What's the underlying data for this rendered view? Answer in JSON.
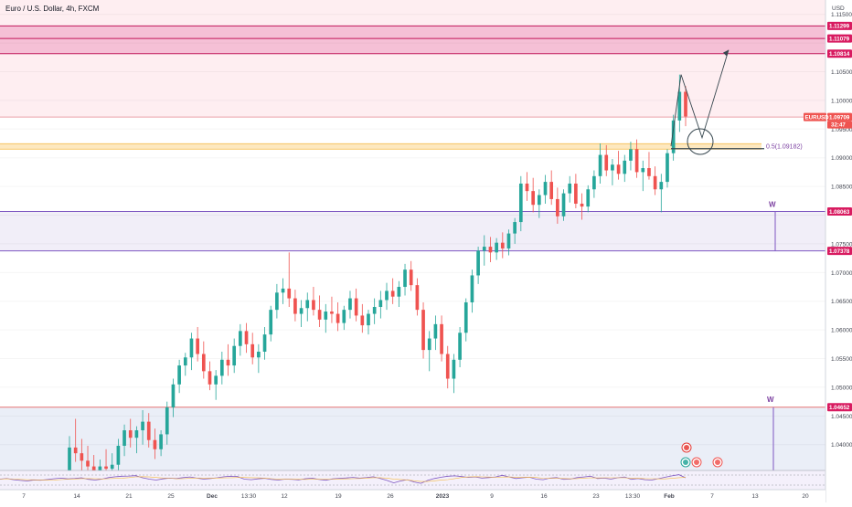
{
  "header": {
    "title": "Euro / U.S. Dollar, 4h, FXCM",
    "currency": "USD"
  },
  "chart_data": {
    "type": "candlestick",
    "symbol": "EURUSD",
    "timeframe": "4h",
    "ylim": [
      1.0355,
      1.1175
    ],
    "y_ticks": [
      "1.11500",
      "1.11000",
      "1.10500",
      "1.10000",
      "1.09500",
      "1.09000",
      "1.08500",
      "1.08000",
      "1.07500",
      "1.07000",
      "1.06500",
      "1.06000",
      "1.05500",
      "1.05000",
      "1.04500",
      "1.04000"
    ],
    "x_tick_labels": [
      "7",
      "14",
      "21",
      "25",
      "Dec",
      "13:30",
      "12",
      "19",
      "26",
      "2023",
      "9",
      "16",
      "23",
      "13:30",
      "Feb",
      "7",
      "13",
      "20"
    ],
    "current_price": {
      "symbol": "EURUSD",
      "value": "1.09709",
      "countdown": "32:47"
    },
    "zones": [
      {
        "name": "upper-resistance",
        "from": 1.10814,
        "to": 1.11299,
        "color": "#f6c7dc",
        "border": "#c2185b"
      },
      {
        "name": "supply-ceiling",
        "from": 1.09709,
        "to": 1.1175,
        "color": "#fde8ec"
      },
      {
        "name": "middle-range",
        "from": 1.07378,
        "to": 1.08063,
        "color": "#ece8f5",
        "border": "#7e57c2"
      },
      {
        "name": "lower-range",
        "from": 1.0355,
        "to": 1.04652,
        "color": "#e3e8f4",
        "border": "#e57373"
      }
    ],
    "levels": [
      {
        "value": 1.11299,
        "label": "1.11299",
        "color": "#d81b60"
      },
      {
        "value": 1.11079,
        "label": "1.11079",
        "color": "#d81b60"
      },
      {
        "value": 1.10814,
        "label": "1.10814",
        "color": "#d81b60"
      },
      {
        "value": 1.09709,
        "label": "1.09709",
        "color": "#ef5350"
      },
      {
        "value": 1.08063,
        "label": "1.08063",
        "color": "#d81b60"
      },
      {
        "value": 1.07378,
        "label": "1.07378",
        "color": "#d81b60"
      },
      {
        "value": 1.04652,
        "label": "1.04652",
        "color": "#d81b60"
      }
    ],
    "fib": {
      "label": "0.5(1.09182)",
      "value": 1.09182
    },
    "annotations": [
      {
        "text": "W"
      },
      {
        "text": "W"
      }
    ],
    "ohlc": [
      [
        1.0335,
        1.0415,
        1.031,
        1.0395
      ],
      [
        1.0395,
        1.0445,
        1.037,
        1.0385
      ],
      [
        1.0385,
        1.041,
        1.0355,
        1.0372
      ],
      [
        1.0372,
        1.0398,
        1.0345,
        1.0362
      ],
      [
        1.0362,
        1.0382,
        1.033,
        1.0348
      ],
      [
        1.0348,
        1.0374,
        1.0315,
        1.0362
      ],
      [
        1.0362,
        1.0392,
        1.034,
        1.0358
      ],
      [
        1.0358,
        1.0385,
        1.033,
        1.0365
      ],
      [
        1.0365,
        1.041,
        1.035,
        1.0398
      ],
      [
        1.0398,
        1.0435,
        1.038,
        1.0425
      ],
      [
        1.0425,
        1.0445,
        1.0395,
        1.0412
      ],
      [
        1.0412,
        1.0432,
        1.0385,
        1.0425
      ],
      [
        1.0425,
        1.046,
        1.04,
        1.044
      ],
      [
        1.044,
        1.0455,
        1.0395,
        1.0408
      ],
      [
        1.0408,
        1.0428,
        1.0375,
        1.0392
      ],
      [
        1.0392,
        1.0425,
        1.038,
        1.0418
      ],
      [
        1.0418,
        1.0475,
        1.04,
        1.0465
      ],
      [
        1.0465,
        1.0515,
        1.0448,
        1.0505
      ],
      [
        1.0505,
        1.0548,
        1.049,
        1.0538
      ],
      [
        1.0538,
        1.056,
        1.052,
        1.0552
      ],
      [
        1.0552,
        1.0595,
        1.053,
        1.0585
      ],
      [
        1.0585,
        1.0605,
        1.0545,
        1.0558
      ],
      [
        1.0558,
        1.058,
        1.0515,
        1.0528
      ],
      [
        1.0528,
        1.0545,
        1.0495,
        1.0505
      ],
      [
        1.0505,
        1.053,
        1.0478,
        1.052
      ],
      [
        1.052,
        1.0562,
        1.0505,
        1.0548
      ],
      [
        1.0548,
        1.0575,
        1.052,
        1.0538
      ],
      [
        1.0538,
        1.0585,
        1.0525,
        1.0572
      ],
      [
        1.0572,
        1.061,
        1.0555,
        1.0598
      ],
      [
        1.0598,
        1.0612,
        1.056,
        1.0575
      ],
      [
        1.0575,
        1.0595,
        1.054,
        1.0552
      ],
      [
        1.0552,
        1.0575,
        1.0525,
        1.0562
      ],
      [
        1.0562,
        1.0605,
        1.0548,
        1.0592
      ],
      [
        1.0592,
        1.0642,
        1.058,
        1.0635
      ],
      [
        1.0635,
        1.068,
        1.062,
        1.0665
      ],
      [
        1.0665,
        1.069,
        1.0645,
        1.0672
      ],
      [
        1.0672,
        1.0735,
        1.064,
        1.0655
      ],
      [
        1.0655,
        1.067,
        1.0615,
        1.0628
      ],
      [
        1.0628,
        1.0652,
        1.0605,
        1.0638
      ],
      [
        1.0638,
        1.0665,
        1.0615,
        1.0652
      ],
      [
        1.0652,
        1.0675,
        1.0625,
        1.0635
      ],
      [
        1.0635,
        1.066,
        1.0605,
        1.0618
      ],
      [
        1.0618,
        1.0645,
        1.0595,
        1.0632
      ],
      [
        1.0632,
        1.0658,
        1.0612,
        1.0628
      ],
      [
        1.0628,
        1.0648,
        1.0598,
        1.0612
      ],
      [
        1.0612,
        1.0642,
        1.06,
        1.0635
      ],
      [
        1.0635,
        1.0668,
        1.062,
        1.0655
      ],
      [
        1.0655,
        1.0672,
        1.0615,
        1.0625
      ],
      [
        1.0625,
        1.0645,
        1.0595,
        1.0608
      ],
      [
        1.0608,
        1.0635,
        1.0592,
        1.0628
      ],
      [
        1.0628,
        1.0655,
        1.061,
        1.064
      ],
      [
        1.064,
        1.0668,
        1.062,
        1.0652
      ],
      [
        1.0652,
        1.0682,
        1.0635,
        1.0668
      ],
      [
        1.0668,
        1.069,
        1.0645,
        1.0658
      ],
      [
        1.0658,
        1.0685,
        1.064,
        1.0675
      ],
      [
        1.0675,
        1.0715,
        1.066,
        1.0705
      ],
      [
        1.0705,
        1.072,
        1.0668,
        1.0678
      ],
      [
        1.0678,
        1.069,
        1.0625,
        1.0635
      ],
      [
        1.0635,
        1.0648,
        1.055,
        1.0565
      ],
      [
        1.0565,
        1.0598,
        1.0528,
        1.0585
      ],
      [
        1.0585,
        1.0625,
        1.0565,
        1.061
      ],
      [
        1.061,
        1.0625,
        1.0545,
        1.0558
      ],
      [
        1.0558,
        1.0572,
        1.0498,
        1.0515
      ],
      [
        1.0515,
        1.0558,
        1.049,
        1.0548
      ],
      [
        1.0548,
        1.0605,
        1.0535,
        1.0595
      ],
      [
        1.0595,
        1.0655,
        1.058,
        1.0648
      ],
      [
        1.0648,
        1.0705,
        1.063,
        1.0695
      ],
      [
        1.0695,
        1.0745,
        1.068,
        1.0738
      ],
      [
        1.0738,
        1.0765,
        1.0712,
        1.0745
      ],
      [
        1.0745,
        1.0762,
        1.0718,
        1.0735
      ],
      [
        1.0735,
        1.076,
        1.0722,
        1.0752
      ],
      [
        1.0752,
        1.077,
        1.0725,
        1.0742
      ],
      [
        1.0742,
        1.0775,
        1.073,
        1.0768
      ],
      [
        1.0768,
        1.0795,
        1.075,
        1.0788
      ],
      [
        1.0788,
        1.0868,
        1.0772,
        1.0855
      ],
      [
        1.0855,
        1.0875,
        1.0825,
        1.0842
      ],
      [
        1.0842,
        1.0865,
        1.0805,
        1.0818
      ],
      [
        1.0818,
        1.0845,
        1.0795,
        1.0835
      ],
      [
        1.0835,
        1.087,
        1.082,
        1.0858
      ],
      [
        1.0858,
        1.0878,
        1.0818,
        1.0828
      ],
      [
        1.0828,
        1.0848,
        1.0785,
        1.0798
      ],
      [
        1.0798,
        1.0845,
        1.079,
        1.0838
      ],
      [
        1.0838,
        1.0868,
        1.0822,
        1.0855
      ],
      [
        1.0855,
        1.0872,
        1.0812,
        1.082
      ],
      [
        1.082,
        1.0838,
        1.0792,
        1.0815
      ],
      [
        1.0815,
        1.0852,
        1.0805,
        1.0845
      ],
      [
        1.0845,
        1.0878,
        1.083,
        1.0868
      ],
      [
        1.0868,
        1.0925,
        1.0855,
        1.0905
      ],
      [
        1.0905,
        1.0922,
        1.0868,
        1.0878
      ],
      [
        1.0878,
        1.0898,
        1.0852,
        1.0888
      ],
      [
        1.0888,
        1.0912,
        1.0862,
        1.0872
      ],
      [
        1.0872,
        1.0905,
        1.0858,
        1.0895
      ],
      [
        1.0895,
        1.0928,
        1.0878,
        1.0915
      ],
      [
        1.0915,
        1.0932,
        1.0865,
        1.0875
      ],
      [
        1.0875,
        1.0895,
        1.0842,
        1.0882
      ],
      [
        1.0882,
        1.091,
        1.0862,
        1.0868
      ],
      [
        1.0868,
        1.0885,
        1.0835,
        1.0845
      ],
      [
        1.0845,
        1.0872,
        1.0805,
        1.0858
      ],
      [
        1.0858,
        1.0915,
        1.0848,
        1.0908
      ],
      [
        1.0908,
        1.0975,
        1.0895,
        1.0965
      ],
      [
        1.0965,
        1.1045,
        1.0945,
        1.1015
      ],
      [
        1.1015,
        1.1025,
        1.0955,
        1.0972
      ]
    ],
    "rsi": {
      "values": [
        55,
        58,
        52,
        48,
        45,
        50,
        49,
        53,
        57,
        60,
        56,
        58,
        62,
        54,
        50,
        55,
        63,
        67,
        70,
        71,
        73,
        62,
        55,
        50,
        56,
        60,
        58,
        63,
        66,
        60,
        55,
        58,
        62,
        67,
        70,
        68,
        55,
        52,
        56,
        59,
        53,
        50,
        55,
        54,
        51,
        57,
        60,
        53,
        49,
        56,
        59,
        61,
        64,
        60,
        63,
        67,
        58,
        48,
        35,
        45,
        52,
        40,
        33,
        48,
        58,
        65,
        70,
        72,
        68,
        64,
        66,
        60,
        63,
        66,
        75,
        66,
        58,
        62,
        65,
        55,
        52,
        60,
        63,
        54,
        55,
        63,
        66,
        70,
        58,
        60,
        55,
        62,
        66,
        54,
        58,
        52,
        50,
        57,
        65,
        72,
        78,
        62
      ]
    }
  }
}
